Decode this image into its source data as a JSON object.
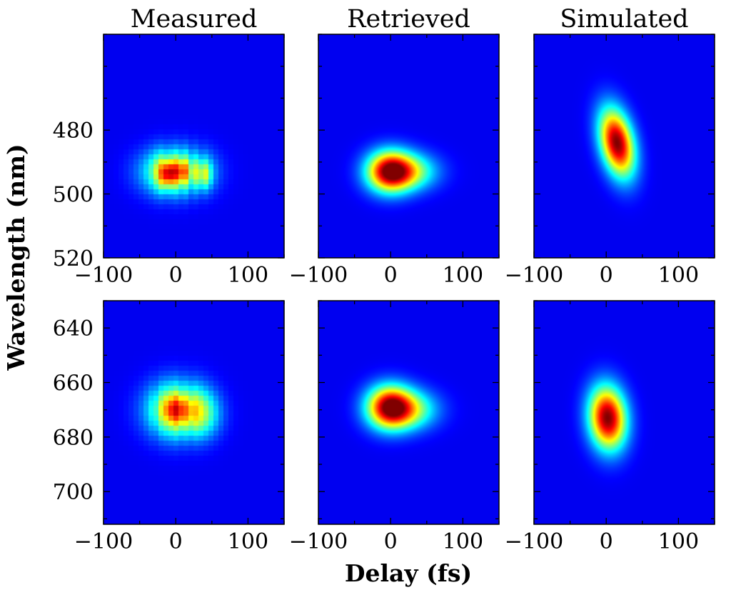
{
  "chart_data": {
    "type": "heatmap",
    "colormap": "jet",
    "columns": [
      "Measured",
      "Retrieved",
      "Simulated"
    ],
    "xlabel": "Delay (fs)",
    "ylabel": "Wavelength (nm)",
    "xlim": [
      -100,
      150
    ],
    "xticks": [
      -100,
      0,
      100
    ],
    "xtick_labels": [
      "−100",
      "0",
      "100"
    ],
    "rows": [
      {
        "ylim": [
          450,
          520
        ],
        "yticks": [
          480,
          500,
          520
        ],
        "ytick_labels": [
          "480",
          "500",
          "520"
        ],
        "panels": [
          {
            "name": "Measured",
            "pixelated": true,
            "blobs": [
              {
                "x": 0,
                "y": 493,
                "sx": 30,
                "sy": 5,
                "a": 0.72
              },
              {
                "x": -12,
                "y": 494,
                "sx": 8,
                "sy": 3,
                "a": 0.35
              },
              {
                "x": 38,
                "y": 494,
                "sx": 8,
                "sy": 3,
                "a": 0.3
              },
              {
                "x": 8,
                "y": 493,
                "sx": 10,
                "sy": 2.5,
                "a": 0.22
              }
            ],
            "stripes": [
              -15,
              -5,
              5,
              20,
              33
            ],
            "stripe_depth": 0.18
          },
          {
            "name": "Retrieved",
            "blobs": [
              {
                "x": -2,
                "y": 493,
                "sx": 22,
                "sy": 4.5,
                "a": 0.85
              },
              {
                "x": 25,
                "y": 493,
                "sx": 28,
                "sy": 4,
                "a": 0.45
              }
            ]
          },
          {
            "name": "Simulated",
            "blobs": [
              {
                "x": 15,
                "y": 484,
                "sx": 17,
                "sy": 7,
                "a": 1.0,
                "tilt": -0.35
              }
            ]
          }
        ]
      },
      {
        "ylim": [
          630,
          712
        ],
        "yticks": [
          640,
          660,
          680,
          700
        ],
        "ytick_labels": [
          "640",
          "660",
          "680",
          "700"
        ],
        "panels": [
          {
            "name": "Measured",
            "pixelated": true,
            "blobs": [
              {
                "x": 2,
                "y": 670,
                "sx": 28,
                "sy": 7,
                "a": 0.72
              },
              {
                "x": 35,
                "y": 672,
                "sx": 20,
                "sy": 6,
                "a": 0.22
              },
              {
                "x": 0,
                "y": 670,
                "sx": 12,
                "sy": 3.5,
                "a": 0.2
              }
            ],
            "stripes": [
              -25,
              -10,
              5,
              18
            ],
            "stripe_depth": 0.15
          },
          {
            "name": "Retrieved",
            "blobs": [
              {
                "x": -2,
                "y": 669,
                "sx": 22,
                "sy": 5.5,
                "a": 0.85
              },
              {
                "x": 25,
                "y": 670,
                "sx": 28,
                "sy": 5,
                "a": 0.45
              }
            ]
          },
          {
            "name": "Simulated",
            "blobs": [
              {
                "x": 2,
                "y": 673,
                "sx": 18,
                "sy": 8,
                "a": 1.0,
                "tilt": -0.1
              }
            ]
          }
        ]
      }
    ]
  }
}
